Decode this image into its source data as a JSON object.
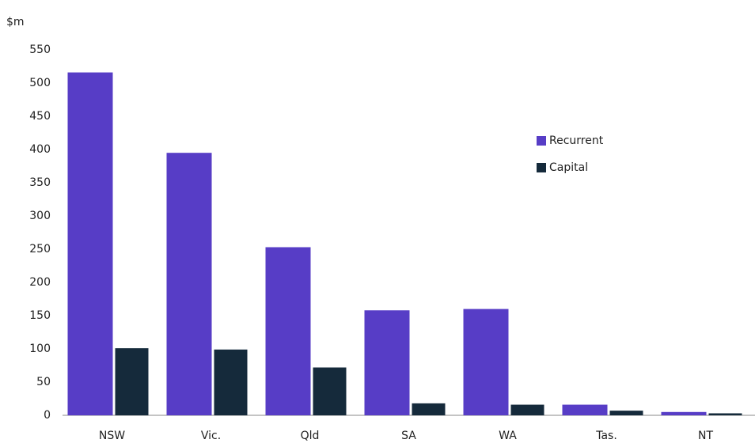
{
  "chart_data": {
    "type": "bar",
    "y_label": "$m",
    "categories": [
      "NSW",
      "Vic.",
      "Qld",
      "SA",
      "WA",
      "Tas.",
      "NT"
    ],
    "series": [
      {
        "name": "Recurrent",
        "color": "#573dc6",
        "values": [
          516,
          395,
          253,
          158,
          160,
          16,
          5
        ]
      },
      {
        "name": "Capital",
        "color": "#152a3b",
        "values": [
          101,
          99,
          72,
          18,
          16,
          7,
          3
        ]
      }
    ],
    "ylim": [
      0,
      550
    ],
    "yticks": [
      0,
      50,
      100,
      150,
      200,
      250,
      300,
      350,
      400,
      450,
      500,
      550
    ],
    "grid": false,
    "legend": "right"
  }
}
